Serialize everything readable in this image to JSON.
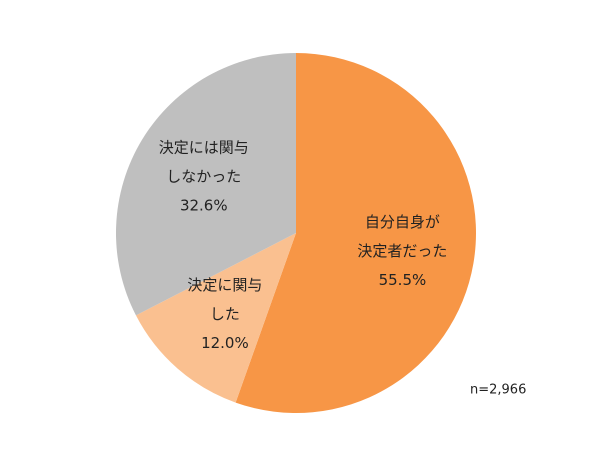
{
  "chart_data": {
    "type": "pie",
    "categories": [
      [
        "自分自身が",
        "決定者だった"
      ],
      [
        "決定に関与",
        "した"
      ],
      [
        "決定には関与",
        "しなかった"
      ]
    ],
    "values": [
      55.5,
      12.0,
      32.6
    ],
    "value_labels": [
      "55.5%",
      "12.0%",
      "32.6%"
    ],
    "colors": [
      "#f79646",
      "#fac090",
      "#bfbfbf"
    ],
    "annotation": "n=2,966"
  }
}
